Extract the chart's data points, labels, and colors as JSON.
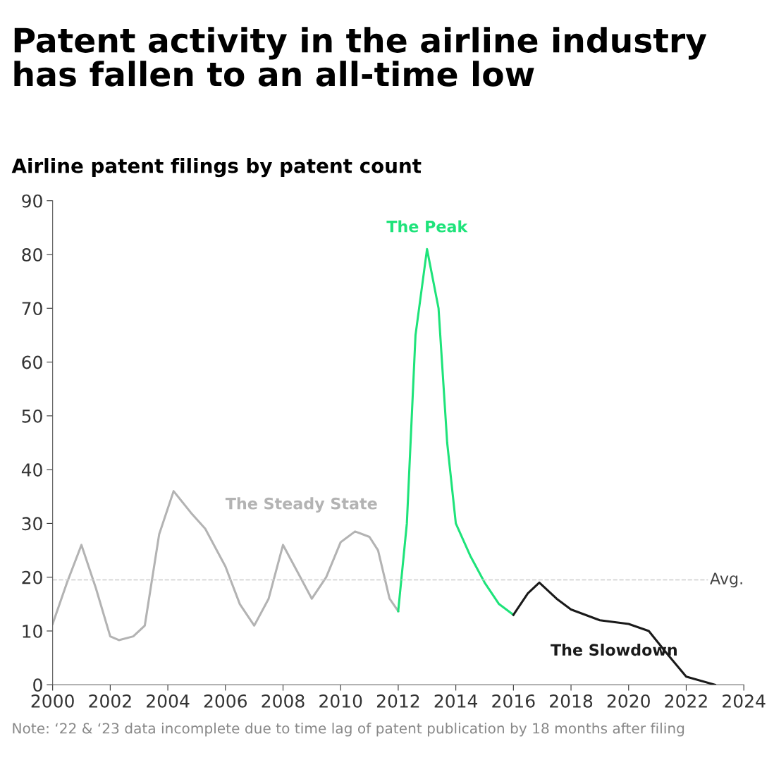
{
  "chart_data": {
    "type": "line",
    "title": "Patent activity in the airline industry\nhas fallen to an all-time low",
    "subtitle": "Airline patent filings by patent count",
    "series": [
      {
        "name": "The Steady State",
        "color": "#b3b3b3",
        "x": [
          2000,
          2000.5,
          2001,
          2001.5,
          2002,
          2002.3,
          2002.8,
          2003.2,
          2003.7,
          2004.2,
          2004.8,
          2005.3,
          2006,
          2006.5,
          2007,
          2007.5,
          2008,
          2008.5,
          2009,
          2009.5,
          2010,
          2010.5,
          2011,
          2011.3,
          2011.7,
          2012
        ],
        "values": [
          11.3,
          19,
          26,
          18,
          9,
          8.3,
          9,
          11,
          28,
          36,
          32,
          29,
          22,
          15,
          11,
          16,
          26,
          21,
          16,
          20,
          26.5,
          28.5,
          27.5,
          25,
          16,
          13.7
        ]
      },
      {
        "name": "The Peak",
        "color": "#1ee37a",
        "x": [
          2012,
          2012.3,
          2012.6,
          2013,
          2013.4,
          2013.7,
          2014,
          2014.5,
          2015,
          2015.5,
          2016
        ],
        "values": [
          13.7,
          30,
          65,
          81,
          70,
          45,
          30,
          24,
          19,
          15,
          13
        ]
      },
      {
        "name": "The Slowdown",
        "color": "#1a1a1a",
        "x": [
          2016,
          2016.5,
          2016.9,
          2017.5,
          2018,
          2019,
          2020,
          2020.7,
          2021.3,
          2022,
          2023
        ],
        "values": [
          13,
          17,
          19,
          16,
          14,
          12,
          11.3,
          10,
          6,
          1.5,
          0
        ]
      }
    ],
    "xlim": [
      2000,
      2024
    ],
    "xticks": [
      2000,
      2002,
      2004,
      2006,
      2008,
      2010,
      2012,
      2014,
      2016,
      2018,
      2020,
      2022,
      2024
    ],
    "ylim": [
      0,
      90
    ],
    "yticks": [
      0,
      10,
      20,
      30,
      40,
      50,
      60,
      70,
      80,
      90
    ],
    "grid": false,
    "ref_lines": [
      {
        "axis": "y",
        "value": 19.5,
        "label": "Avg.",
        "color": "#cccccc",
        "line_style": "dashed"
      }
    ],
    "annotations": [
      "Note: ‘22 & ‘23 data incomplete due to time lag of patent publication by 18 months after filing"
    ]
  }
}
